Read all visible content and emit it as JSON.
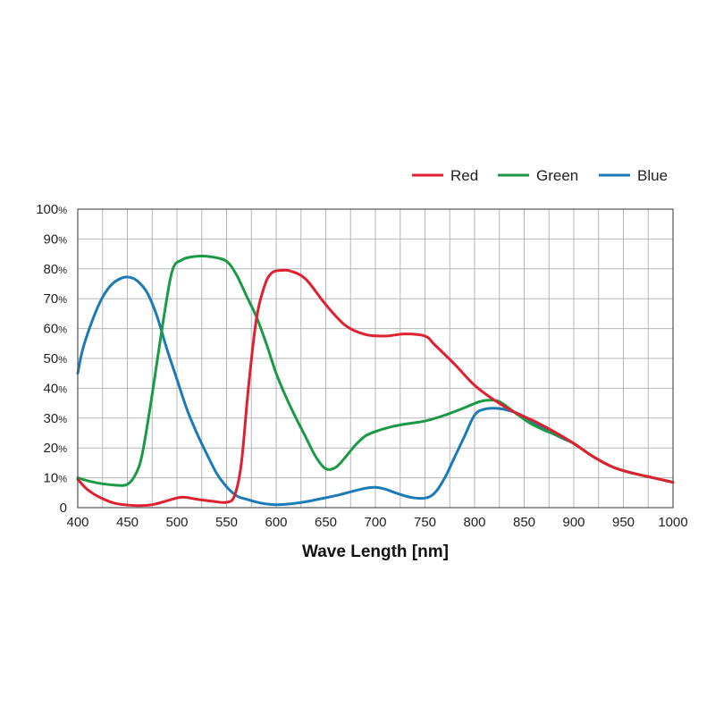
{
  "chart_data": {
    "type": "line",
    "title": "",
    "xlabel": "Wave Length [nm]",
    "ylabel": "",
    "xlim": [
      400,
      1000
    ],
    "ylim": [
      0,
      100
    ],
    "grid": true,
    "legend_position": "top-right",
    "x_ticks": [
      "400",
      "450",
      "500",
      "550",
      "600",
      "650",
      "700",
      "750",
      "800",
      "850",
      "900",
      "950",
      "1000"
    ],
    "y_ticks": [
      {
        "value": 0,
        "num": "0",
        "unit": ""
      },
      {
        "value": 10,
        "num": "10",
        "unit": "%"
      },
      {
        "value": 20,
        "num": "20",
        "unit": "%"
      },
      {
        "value": 30,
        "num": "30",
        "unit": "%"
      },
      {
        "value": 40,
        "num": "40",
        "unit": "%"
      },
      {
        "value": 50,
        "num": "50",
        "unit": "%"
      },
      {
        "value": 60,
        "num": "60",
        "unit": "%"
      },
      {
        "value": 70,
        "num": "70",
        "unit": "%"
      },
      {
        "value": 80,
        "num": "80",
        "unit": "%"
      },
      {
        "value": 90,
        "num": "90",
        "unit": "%"
      },
      {
        "value": 100,
        "num": "100",
        "unit": "%"
      }
    ],
    "series": [
      {
        "name": "Red",
        "color": "#e0202e",
        "points": [
          [
            400,
            9.5
          ],
          [
            410,
            6
          ],
          [
            425,
            3
          ],
          [
            440,
            1.3
          ],
          [
            460,
            0.7
          ],
          [
            475,
            1
          ],
          [
            490,
            2.3
          ],
          [
            505,
            3.5
          ],
          [
            520,
            2.8
          ],
          [
            535,
            2.2
          ],
          [
            550,
            1.8
          ],
          [
            558,
            4
          ],
          [
            565,
            15
          ],
          [
            572,
            40
          ],
          [
            580,
            63
          ],
          [
            588,
            74
          ],
          [
            595,
            78.5
          ],
          [
            605,
            79.5
          ],
          [
            615,
            79.2
          ],
          [
            630,
            76.5
          ],
          [
            650,
            68
          ],
          [
            670,
            61
          ],
          [
            690,
            58
          ],
          [
            710,
            57.5
          ],
          [
            730,
            58.2
          ],
          [
            750,
            57.5
          ],
          [
            760,
            54.5
          ],
          [
            780,
            48
          ],
          [
            800,
            41
          ],
          [
            820,
            36
          ],
          [
            840,
            32
          ],
          [
            860,
            29
          ],
          [
            880,
            25.5
          ],
          [
            900,
            21.5
          ],
          [
            920,
            17
          ],
          [
            940,
            13.5
          ],
          [
            960,
            11.5
          ],
          [
            980,
            10
          ],
          [
            1000,
            8.5
          ]
        ]
      },
      {
        "name": "Green",
        "color": "#1a9a44",
        "points": [
          [
            400,
            10
          ],
          [
            410,
            9
          ],
          [
            425,
            8
          ],
          [
            440,
            7.5
          ],
          [
            450,
            7.8
          ],
          [
            458,
            11
          ],
          [
            465,
            18
          ],
          [
            475,
            38
          ],
          [
            485,
            60
          ],
          [
            495,
            79
          ],
          [
            505,
            83
          ],
          [
            520,
            84.2
          ],
          [
            535,
            84
          ],
          [
            550,
            82.5
          ],
          [
            560,
            78
          ],
          [
            570,
            71
          ],
          [
            580,
            64
          ],
          [
            590,
            55
          ],
          [
            600,
            45
          ],
          [
            610,
            37
          ],
          [
            620,
            30
          ],
          [
            630,
            23.5
          ],
          [
            640,
            17
          ],
          [
            650,
            13
          ],
          [
            660,
            13.5
          ],
          [
            670,
            17
          ],
          [
            680,
            21
          ],
          [
            690,
            24
          ],
          [
            700,
            25.5
          ],
          [
            715,
            27
          ],
          [
            730,
            28
          ],
          [
            750,
            29
          ],
          [
            770,
            31
          ],
          [
            790,
            33.5
          ],
          [
            805,
            35.5
          ],
          [
            815,
            36
          ],
          [
            825,
            35.5
          ],
          [
            840,
            32
          ],
          [
            855,
            28.5
          ],
          [
            870,
            26
          ],
          [
            885,
            24
          ],
          [
            900,
            21.5
          ],
          [
            920,
            17
          ],
          [
            940,
            13.5
          ],
          [
            960,
            11.5
          ],
          [
            980,
            10
          ],
          [
            1000,
            8.5
          ]
        ]
      },
      {
        "name": "Blue",
        "color": "#1b7ab8",
        "points": [
          [
            400,
            45
          ],
          [
            405,
            53
          ],
          [
            415,
            63
          ],
          [
            425,
            70.5
          ],
          [
            435,
            75
          ],
          [
            445,
            77
          ],
          [
            452,
            77.2
          ],
          [
            460,
            76
          ],
          [
            470,
            72
          ],
          [
            480,
            64
          ],
          [
            490,
            53
          ],
          [
            500,
            43
          ],
          [
            510,
            33
          ],
          [
            520,
            25
          ],
          [
            530,
            18
          ],
          [
            540,
            11.5
          ],
          [
            550,
            7
          ],
          [
            560,
            4
          ],
          [
            570,
            2.8
          ],
          [
            585,
            1.5
          ],
          [
            600,
            1
          ],
          [
            615,
            1.3
          ],
          [
            630,
            2
          ],
          [
            645,
            3
          ],
          [
            660,
            4
          ],
          [
            675,
            5.3
          ],
          [
            690,
            6.5
          ],
          [
            700,
            6.8
          ],
          [
            710,
            6.2
          ],
          [
            720,
            5
          ],
          [
            735,
            3.5
          ],
          [
            750,
            3.2
          ],
          [
            760,
            5
          ],
          [
            770,
            10
          ],
          [
            780,
            17
          ],
          [
            790,
            24
          ],
          [
            800,
            31
          ],
          [
            810,
            33
          ],
          [
            825,
            33.2
          ],
          [
            840,
            32
          ],
          [
            850,
            30.5
          ],
          [
            860,
            28.5
          ],
          [
            875,
            25.5
          ],
          [
            890,
            23
          ],
          [
            900,
            21.5
          ],
          [
            920,
            17
          ],
          [
            940,
            13.5
          ],
          [
            960,
            11.5
          ],
          [
            980,
            10
          ],
          [
            1000,
            8.5
          ]
        ]
      }
    ]
  }
}
